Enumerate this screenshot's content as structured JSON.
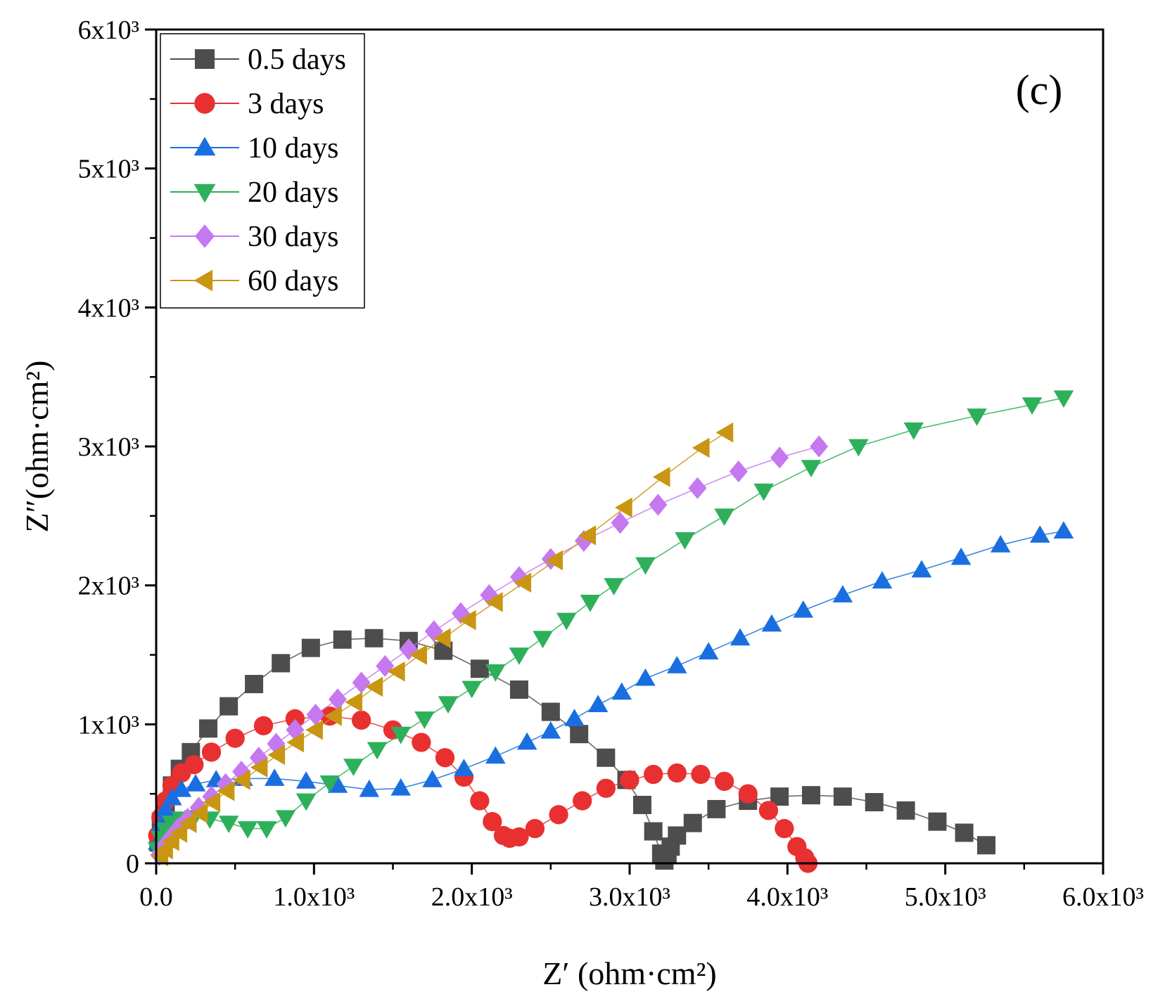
{
  "chart_data": {
    "type": "scatter",
    "title": "",
    "panel_label": "(c)",
    "xlabel": "Z′ (ohm·cm²)",
    "ylabel": "Z″(ohm·cm²)",
    "xlim": [
      0,
      6000
    ],
    "ylim": [
      0,
      6000
    ],
    "x_ticks": [
      {
        "value": 0,
        "label": "0.0"
      },
      {
        "value": 1000,
        "label": "1.0x10³"
      },
      {
        "value": 2000,
        "label": "2.0x10³"
      },
      {
        "value": 3000,
        "label": "3.0x10³"
      },
      {
        "value": 4000,
        "label": "4.0x10³"
      },
      {
        "value": 5000,
        "label": "5.0x10³"
      },
      {
        "value": 6000,
        "label": "6.0x10³"
      }
    ],
    "y_ticks": [
      {
        "value": 0,
        "label": "0"
      },
      {
        "value": 1000,
        "label": "1x10³"
      },
      {
        "value": 2000,
        "label": "2x10³"
      },
      {
        "value": 3000,
        "label": "3x10³"
      },
      {
        "value": 4000,
        "label": "4x10³"
      },
      {
        "value": 5000,
        "label": "5x10³"
      },
      {
        "value": 6000,
        "label": "6x10³"
      }
    ],
    "legend_position": "top-left",
    "series": [
      {
        "name": "0.5 days",
        "color": "#4d4d4d",
        "marker": "square",
        "x": [
          15,
          30,
          60,
          100,
          150,
          220,
          330,
          460,
          620,
          790,
          980,
          1180,
          1380,
          1600,
          1820,
          2050,
          2300,
          2500,
          2680,
          2850,
          2980,
          3080,
          3150,
          3200,
          3220,
          3240,
          3260,
          3300,
          3400,
          3550,
          3750,
          3950,
          4150,
          4350,
          4550,
          4750,
          4950,
          5120,
          5260
        ],
        "y": [
          150,
          300,
          420,
          560,
          680,
          800,
          970,
          1130,
          1290,
          1440,
          1550,
          1610,
          1620,
          1600,
          1530,
          1400,
          1250,
          1090,
          930,
          760,
          600,
          420,
          230,
          70,
          20,
          60,
          120,
          200,
          290,
          390,
          450,
          480,
          490,
          480,
          440,
          380,
          300,
          220,
          130
        ]
      },
      {
        "name": "3 days",
        "color": "#e83030",
        "marker": "circle",
        "x": [
          10,
          30,
          60,
          100,
          160,
          240,
          350,
          500,
          680,
          880,
          1100,
          1300,
          1500,
          1680,
          1830,
          1950,
          2050,
          2130,
          2200,
          2240,
          2300,
          2400,
          2550,
          2700,
          2850,
          3000,
          3150,
          3300,
          3450,
          3600,
          3750,
          3880,
          3980,
          4060,
          4110,
          4130
        ],
        "y": [
          200,
          330,
          450,
          560,
          650,
          710,
          800,
          900,
          990,
          1040,
          1060,
          1030,
          960,
          870,
          760,
          620,
          450,
          300,
          200,
          180,
          190,
          250,
          350,
          450,
          540,
          600,
          640,
          650,
          640,
          590,
          500,
          380,
          250,
          120,
          40,
          0
        ]
      },
      {
        "name": "10 days",
        "color": "#1a6fe0",
        "marker": "triangle-up",
        "x": [
          10,
          30,
          60,
          100,
          160,
          250,
          380,
          550,
          750,
          950,
          1150,
          1350,
          1550,
          1750,
          1950,
          2150,
          2350,
          2500,
          2650,
          2800,
          2950,
          3100,
          3300,
          3500,
          3700,
          3900,
          4100,
          4350,
          4600,
          4850,
          5100,
          5350,
          5600,
          5750
        ],
        "y": [
          150,
          280,
          390,
          470,
          530,
          570,
          600,
          610,
          610,
          590,
          560,
          530,
          540,
          600,
          680,
          770,
          870,
          950,
          1040,
          1140,
          1230,
          1330,
          1420,
          1520,
          1620,
          1720,
          1820,
          1930,
          2030,
          2110,
          2200,
          2290,
          2360,
          2390
        ]
      },
      {
        "name": "20 days",
        "color": "#2eb05a",
        "marker": "triangle-down",
        "x": [
          10,
          30,
          60,
          100,
          160,
          240,
          340,
          460,
          580,
          700,
          820,
          950,
          1100,
          1250,
          1400,
          1550,
          1700,
          1850,
          2000,
          2150,
          2300,
          2450,
          2600,
          2750,
          2900,
          3100,
          3350,
          3600,
          3850,
          4150,
          4450,
          4800,
          5200,
          5550,
          5750
        ],
        "y": [
          100,
          180,
          240,
          290,
          320,
          330,
          320,
          290,
          250,
          250,
          330,
          450,
          580,
          700,
          820,
          930,
          1040,
          1150,
          1260,
          1380,
          1500,
          1620,
          1750,
          1880,
          2000,
          2150,
          2330,
          2500,
          2680,
          2850,
          3000,
          3120,
          3220,
          3300,
          3350
        ]
      },
      {
        "name": "30 days",
        "color": "#c678f0",
        "marker": "diamond",
        "x": [
          20,
          50,
          90,
          140,
          200,
          270,
          350,
          440,
          540,
          650,
          760,
          880,
          1010,
          1150,
          1300,
          1450,
          1600,
          1760,
          1930,
          2110,
          2300,
          2500,
          2710,
          2940,
          3180,
          3430,
          3690,
          3950,
          4200
        ],
        "y": [
          60,
          120,
          180,
          250,
          320,
          400,
          480,
          570,
          660,
          760,
          860,
          960,
          1070,
          1180,
          1300,
          1420,
          1540,
          1670,
          1800,
          1930,
          2060,
          2190,
          2320,
          2450,
          2580,
          2700,
          2820,
          2920,
          3000
        ]
      },
      {
        "name": "60 days",
        "color": "#c99613",
        "marker": "triangle-left",
        "x": [
          30,
          60,
          100,
          150,
          210,
          280,
          360,
          450,
          550,
          660,
          770,
          890,
          1010,
          1130,
          1260,
          1390,
          1530,
          1670,
          1820,
          1980,
          2150,
          2330,
          2530,
          2740,
          2970,
          3210,
          3460,
          3610
        ],
        "y": [
          50,
          100,
          160,
          220,
          290,
          360,
          440,
          520,
          600,
          690,
          780,
          870,
          960,
          1060,
          1160,
          1270,
          1380,
          1500,
          1620,
          1750,
          1880,
          2020,
          2180,
          2360,
          2560,
          2780,
          2990,
          3100
        ]
      }
    ]
  }
}
